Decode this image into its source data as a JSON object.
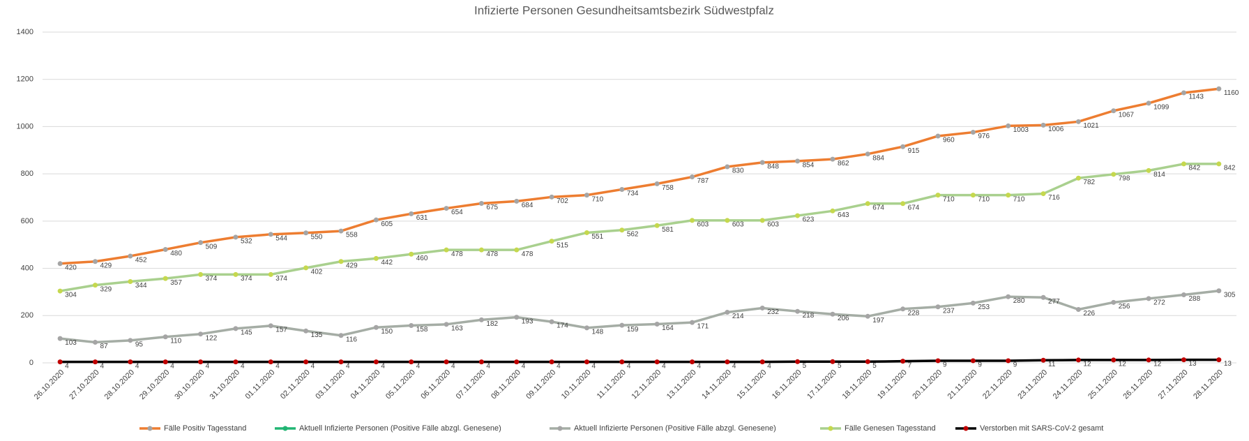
{
  "chart_data": {
    "type": "line",
    "title": "Infizierte Personen Gesundheitsamtsbezirk Südwestpfalz",
    "categories": [
      "26.10.2020",
      "27.10.2020",
      "28.10.2020",
      "29.10.2020",
      "30.10.2020",
      "31.10.2020",
      "01.11.2020",
      "02.11.2020",
      "03.11.2020",
      "04.11.2020",
      "05.11.2020",
      "06.11.2020",
      "07.11.2020",
      "08.11.2020",
      "09.11.2020",
      "10.11.2020",
      "11.11.2020",
      "12.11.2020",
      "13.11.2020",
      "14.11.2020",
      "15.11.2020",
      "16.11.2020",
      "17.11.2020",
      "18.11.2020",
      "19.11.2020",
      "20.11.2020",
      "21.11.2020",
      "22.11.2020",
      "23.11.2020",
      "24.11.2020",
      "25.11.2020",
      "26.11.2020",
      "27.11.2020",
      "28.11.2020"
    ],
    "series": [
      {
        "name": "Fälle Positiv Tagesstand",
        "color": "#ed7d31",
        "marker_color": "#a5a5a5",
        "values": [
          420,
          429,
          452,
          480,
          509,
          532,
          544,
          550,
          558,
          605,
          631,
          654,
          675,
          684,
          702,
          710,
          734,
          758,
          787,
          830,
          848,
          854,
          862,
          884,
          915,
          960,
          976,
          1003,
          1006,
          1021,
          1067,
          1099,
          1143,
          1160
        ]
      },
      {
        "name": "Aktuell Infizierte Personen (Positive Fälle abzgl. Genesene)",
        "color": "#21b573",
        "marker_color": "#21b573",
        "values": [
          null,
          null,
          null,
          null,
          null,
          null,
          null,
          null,
          null,
          null,
          null,
          null,
          null,
          null,
          null,
          null,
          null,
          null,
          null,
          null,
          null,
          null,
          null,
          null,
          null,
          null,
          null,
          null,
          null,
          null,
          null,
          null,
          null,
          null
        ]
      },
      {
        "name": "Aktuell Infizierte Personen (Positive Fälle abzgl. Genesene)",
        "color": "#a5ada5",
        "marker_color": "#a5a5a5",
        "values": [
          103,
          87,
          95,
          110,
          122,
          145,
          157,
          135,
          116,
          150,
          158,
          163,
          182,
          193,
          174,
          148,
          159,
          164,
          171,
          214,
          232,
          218,
          206,
          197,
          228,
          237,
          253,
          280,
          277,
          226,
          256,
          272,
          288,
          305
        ]
      },
      {
        "name": "Fälle Genesen Tagesstand",
        "color": "#a9d08e",
        "marker_color": "#c5d84e",
        "values": [
          304,
          329,
          344,
          357,
          374,
          374,
          374,
          402,
          429,
          442,
          460,
          478,
          478,
          478,
          515,
          551,
          562,
          581,
          603,
          603,
          603,
          623,
          643,
          674,
          674,
          710,
          710,
          710,
          716,
          782,
          798,
          814,
          842,
          842
        ]
      },
      {
        "name": "Verstorben mit SARS-CoV-2 gesamt",
        "color": "#000000",
        "marker_color": "#c00000",
        "values": [
          4,
          4,
          4,
          4,
          4,
          4,
          4,
          4,
          4,
          4,
          4,
          4,
          4,
          4,
          4,
          4,
          4,
          4,
          4,
          4,
          4,
          5,
          5,
          5,
          7,
          9,
          9,
          9,
          11,
          12,
          12,
          12,
          13,
          13
        ]
      }
    ],
    "ylim": [
      0,
      1400
    ],
    "yticks": [
      0,
      200,
      400,
      600,
      800,
      1000,
      1200,
      1400
    ],
    "grid": true,
    "legend": "bottom"
  }
}
